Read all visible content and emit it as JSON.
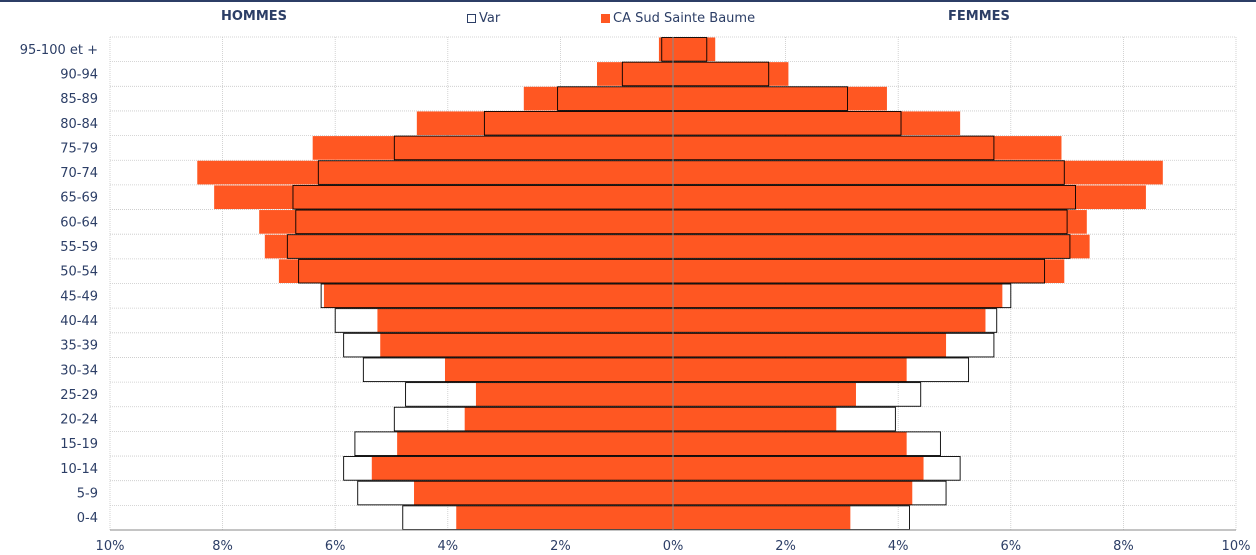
{
  "header": {
    "left_title": "HOMMES",
    "right_title": "FEMMES"
  },
  "legend": [
    {
      "label": "Var",
      "style": "outline"
    },
    {
      "label": "CA Sud Sainte Baume",
      "style": "filled"
    }
  ],
  "colors": {
    "filled": "#FF5722",
    "outline": "#000000",
    "text": "#2c3e66",
    "grid": "#c8c8c8"
  },
  "chart_data": {
    "type": "bar",
    "orientation": "horizontal",
    "subtype": "population-pyramid",
    "categories": [
      "0-4",
      "5-9",
      "10-14",
      "15-19",
      "20-24",
      "25-29",
      "30-34",
      "35-39",
      "40-44",
      "45-49",
      "50-54",
      "55-59",
      "60-64",
      "65-69",
      "70-74",
      "75-79",
      "80-84",
      "85-89",
      "90-94",
      "95-100 et +"
    ],
    "xlim": [
      -10,
      10
    ],
    "xticks": [
      -10,
      -8,
      -6,
      -4,
      -2,
      0,
      2,
      4,
      6,
      8,
      10
    ],
    "xtick_labels": [
      "10%",
      "8%",
      "6%",
      "4%",
      "2%",
      "0%",
      "2%",
      "4%",
      "6%",
      "8%",
      "10%"
    ],
    "grid": true,
    "series": [
      {
        "name": "Var",
        "style": "outline",
        "hommes": [
          4.8,
          5.6,
          5.85,
          5.65,
          4.95,
          4.75,
          5.5,
          5.85,
          6.0,
          6.25,
          6.65,
          6.85,
          6.7,
          6.75,
          6.3,
          4.95,
          3.35,
          2.05,
          0.9,
          0.2
        ],
        "femmes": [
          4.2,
          4.85,
          5.1,
          4.75,
          3.95,
          4.4,
          5.25,
          5.7,
          5.75,
          6.0,
          6.6,
          7.05,
          7.0,
          7.15,
          6.95,
          5.7,
          4.05,
          3.1,
          1.7,
          0.6
        ]
      },
      {
        "name": "CA Sud Sainte Baume",
        "style": "filled",
        "hommes": [
          3.85,
          4.6,
          5.35,
          4.9,
          3.7,
          3.5,
          4.05,
          5.2,
          5.25,
          6.2,
          7.0,
          7.25,
          7.35,
          8.15,
          8.45,
          6.4,
          4.55,
          2.65,
          1.35,
          0.25
        ],
        "femmes": [
          3.15,
          4.25,
          4.45,
          4.15,
          2.9,
          3.25,
          4.15,
          4.85,
          5.55,
          5.85,
          6.95,
          7.4,
          7.35,
          8.4,
          8.7,
          6.9,
          5.1,
          3.8,
          2.05,
          0.75
        ]
      }
    ]
  }
}
